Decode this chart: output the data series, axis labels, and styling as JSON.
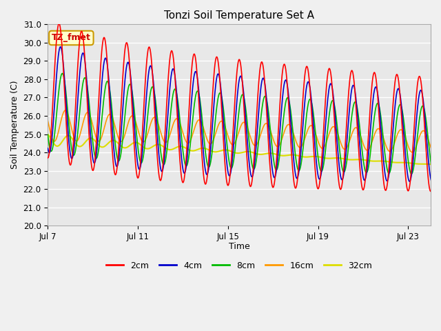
{
  "title": "Tonzi Soil Temperature Set A",
  "xlabel": "Time",
  "ylabel": "Soil Temperature (C)",
  "ylim": [
    20.0,
    31.0
  ],
  "yticks": [
    20.0,
    21.0,
    22.0,
    23.0,
    24.0,
    25.0,
    26.0,
    27.0,
    28.0,
    29.0,
    30.0,
    31.0
  ],
  "xtick_labels": [
    "Jul 7",
    "Jul 11",
    "Jul 15",
    "Jul 19",
    "Jul 23"
  ],
  "xtick_positions": [
    0,
    4,
    8,
    12,
    16
  ],
  "xlim": [
    0,
    17
  ],
  "legend_labels": [
    "2cm",
    "4cm",
    "8cm",
    "16cm",
    "32cm"
  ],
  "line_colors": [
    "#ff0000",
    "#0000cc",
    "#00bb00",
    "#ff9900",
    "#dddd00"
  ],
  "line_widths": [
    1.2,
    1.2,
    1.2,
    1.2,
    1.5
  ],
  "annotation_text": "TZ_fmet",
  "annotation_bg": "#ffffcc",
  "annotation_border": "#cc9900",
  "annotation_text_color": "#cc0000",
  "fig_bg_color": "#f0f0f0",
  "plot_bg_color": "#e8e8e8",
  "grid_color": "#ffffff",
  "n_points": 864,
  "total_days": 17.5,
  "period_hours": 24
}
